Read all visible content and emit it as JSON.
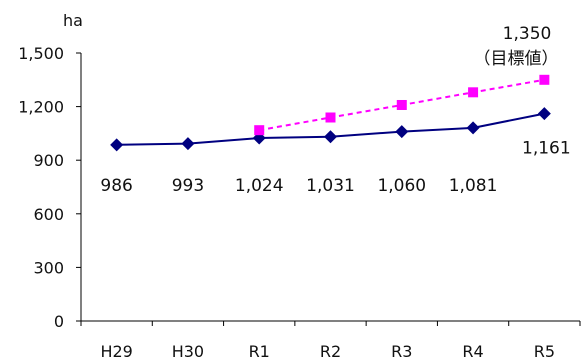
{
  "chart_data": {
    "type": "line",
    "unit_label": "ha",
    "categories": [
      "H29",
      "H30",
      "R1",
      "R2",
      "R3",
      "R4",
      "R5"
    ],
    "ylim": [
      0,
      1500
    ],
    "yticks": [
      0,
      300,
      600,
      900,
      1200,
      1500
    ],
    "ytick_labels": [
      "0",
      "300",
      "600",
      "900",
      "1,200",
      "1,500"
    ],
    "grid": false,
    "series": [
      {
        "values": [
          986,
          993,
          1024,
          1031,
          1060,
          1081,
          1161
        ],
        "labels": [
          "986",
          "993",
          "1,024",
          "1,031",
          "1,060",
          "1,081",
          "1,161"
        ],
        "color": "#000080",
        "marker": "diamond",
        "line": "solid"
      },
      {
        "values": [
          null,
          null,
          1068,
          1139,
          1209,
          1280,
          1350
        ],
        "color": "#ff00ff",
        "marker": "square",
        "line": "dashed"
      }
    ],
    "annotation": {
      "value_text": "1,350",
      "target_text": "（目標値）"
    }
  }
}
